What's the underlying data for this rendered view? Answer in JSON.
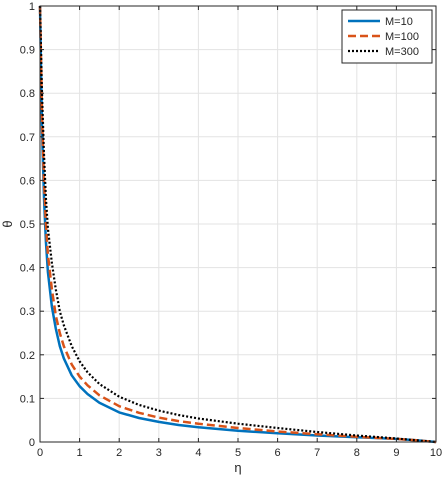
{
  "chart_data": {
    "type": "line",
    "xlabel": "η",
    "ylabel": "θ",
    "xlim": [
      0,
      10
    ],
    "ylim": [
      0,
      1
    ],
    "xticks": [
      0,
      1,
      2,
      3,
      4,
      5,
      6,
      7,
      8,
      9,
      10
    ],
    "yticks": [
      0,
      0.1,
      0.2,
      0.3,
      0.4,
      0.5,
      0.6,
      0.7,
      0.8,
      0.9,
      1
    ],
    "grid": true,
    "legend_position": "top-right",
    "x": [
      0,
      0.05,
      0.1,
      0.15,
      0.2,
      0.3,
      0.4,
      0.5,
      0.6,
      0.8,
      1.0,
      1.2,
      1.5,
      2.0,
      2.5,
      3.0,
      3.5,
      4.0,
      5.0,
      6.0,
      7.0,
      8.0,
      9.0,
      9.5,
      10.0
    ],
    "series": [
      {
        "name": "M=10",
        "color": "#0072BD",
        "dash": "solid",
        "values": [
          1.0,
          0.72,
          0.56,
          0.46,
          0.39,
          0.31,
          0.26,
          0.22,
          0.192,
          0.153,
          0.128,
          0.11,
          0.09,
          0.068,
          0.055,
          0.046,
          0.039,
          0.034,
          0.026,
          0.02,
          0.015,
          0.011,
          0.007,
          0.004,
          0.0
        ]
      },
      {
        "name": "M=100",
        "color": "#D95319",
        "dash": "dashed",
        "values": [
          1.0,
          0.75,
          0.6,
          0.5,
          0.43,
          0.35,
          0.29,
          0.25,
          0.22,
          0.178,
          0.15,
          0.13,
          0.107,
          0.082,
          0.067,
          0.056,
          0.048,
          0.042,
          0.032,
          0.024,
          0.018,
          0.012,
          0.007,
          0.004,
          0.0
        ]
      },
      {
        "name": "M=300",
        "color": "#000000",
        "dash": "dotted",
        "values": [
          1.0,
          0.8,
          0.66,
          0.56,
          0.49,
          0.41,
          0.35,
          0.3,
          0.268,
          0.22,
          0.185,
          0.16,
          0.133,
          0.104,
          0.085,
          0.072,
          0.062,
          0.054,
          0.042,
          0.032,
          0.023,
          0.015,
          0.008,
          0.004,
          0.0
        ]
      }
    ]
  }
}
